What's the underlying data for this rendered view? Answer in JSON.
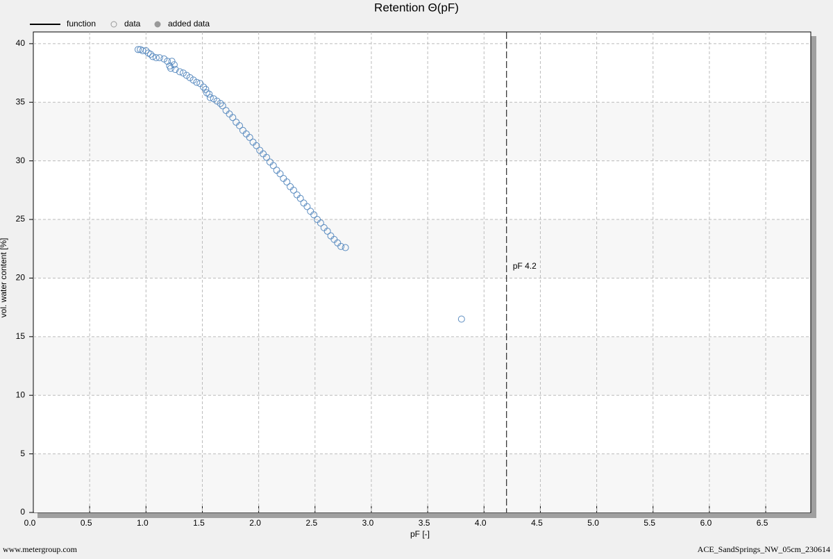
{
  "chart_data": {
    "type": "scatter",
    "title": "Retention Θ(pF)",
    "x_label": "pF [-]",
    "y_label": "vol. water content [%]",
    "xlim": [
      0,
      6.9
    ],
    "ylim": [
      0,
      41
    ],
    "xticks": [
      {
        "value": 0,
        "label": "0.0"
      },
      0.5,
      {
        "value": 1,
        "label": "1.0"
      },
      1.5,
      {
        "value": 2,
        "label": "2.0"
      },
      2.5,
      {
        "value": 3,
        "label": "3.0"
      },
      3.5,
      {
        "value": 4,
        "label": "4.0"
      },
      4.5,
      {
        "value": 5,
        "label": "5.0"
      },
      5.5,
      {
        "value": 6,
        "label": "6.0"
      },
      6.5
    ],
    "yticks": [
      0,
      5,
      10,
      15,
      20,
      25,
      30,
      35,
      40
    ],
    "grid": true,
    "series": [
      {
        "name": "function",
        "marker": "line",
        "color": "#000000",
        "x": [],
        "values": []
      },
      {
        "name": "data",
        "marker": "open-circle",
        "color": "#5b8cc0",
        "x": [
          0.93,
          0.95,
          0.97,
          1.0,
          1.02,
          1.04,
          1.06,
          1.09,
          1.12,
          1.16,
          1.19,
          1.21,
          1.22,
          1.23,
          1.25,
          1.26,
          1.3,
          1.33,
          1.36,
          1.39,
          1.42,
          1.45,
          1.48,
          1.51,
          1.53,
          1.54,
          1.56,
          1.57,
          1.6,
          1.63,
          1.66,
          1.68,
          1.71,
          1.74,
          1.77,
          1.8,
          1.83,
          1.86,
          1.89,
          1.92,
          1.95,
          1.98,
          2.01,
          2.04,
          2.07,
          2.1,
          2.13,
          2.16,
          2.19,
          2.22,
          2.25,
          2.28,
          2.31,
          2.34,
          2.37,
          2.4,
          2.43,
          2.46,
          2.49,
          2.52,
          2.55,
          2.58,
          2.61,
          2.64,
          2.67,
          2.7,
          2.73,
          2.77,
          3.8
        ],
        "values": [
          39.5,
          39.5,
          39.4,
          39.4,
          39.2,
          39.1,
          38.9,
          38.8,
          38.8,
          38.7,
          38.5,
          38.1,
          37.9,
          38.5,
          38.2,
          37.8,
          37.6,
          37.5,
          37.3,
          37.1,
          36.9,
          36.7,
          36.6,
          36.3,
          36.1,
          35.8,
          35.7,
          35.4,
          35.3,
          35.1,
          34.9,
          34.7,
          34.3,
          34.0,
          33.7,
          33.3,
          33.0,
          32.6,
          32.3,
          32.0,
          31.6,
          31.3,
          30.9,
          30.6,
          30.3,
          29.9,
          29.6,
          29.2,
          28.9,
          28.5,
          28.2,
          27.8,
          27.5,
          27.1,
          26.8,
          26.4,
          26.1,
          25.7,
          25.4,
          25.0,
          24.7,
          24.3,
          24.0,
          23.6,
          23.3,
          23.0,
          22.7,
          22.6,
          16.5
        ]
      },
      {
        "name": "added data",
        "marker": "filled-circle",
        "color": "#999999",
        "x": [],
        "values": []
      }
    ],
    "annotations": [
      {
        "x": 4.2,
        "label": "pF 4.2"
      }
    ]
  },
  "footer": {
    "left": "www.metergroup.com",
    "right": "ACE_SandSprings_NW_05cm_230614"
  }
}
